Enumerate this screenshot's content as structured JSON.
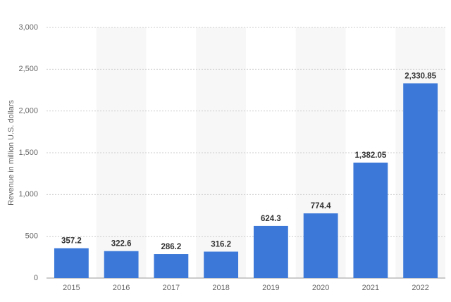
{
  "chart_data": {
    "type": "bar",
    "y_label": "Revenue in million U.S. dollars",
    "categories": [
      "2015",
      "2016",
      "2017",
      "2018",
      "2019",
      "2020",
      "2021",
      "2022"
    ],
    "values": [
      357.2,
      322.6,
      286.2,
      316.2,
      624.3,
      774.4,
      1382.05,
      2330.85
    ],
    "value_labels": [
      "357.2",
      "322.6",
      "286.2",
      "316.2",
      "624.3",
      "774.4",
      "1,382.05",
      "2,330.85"
    ],
    "color": "#3b78d8",
    "ylim": [
      0,
      3000
    ],
    "yticks": [
      0,
      500,
      {
        "value": 1000,
        "label": "1,000"
      },
      {
        "value": 1500,
        "label": "1,500"
      },
      {
        "value": 2000,
        "label": "2,000"
      },
      {
        "value": 2500,
        "label": "2,500"
      },
      {
        "value": 3000,
        "label": "3,000"
      }
    ],
    "grid": true
  }
}
